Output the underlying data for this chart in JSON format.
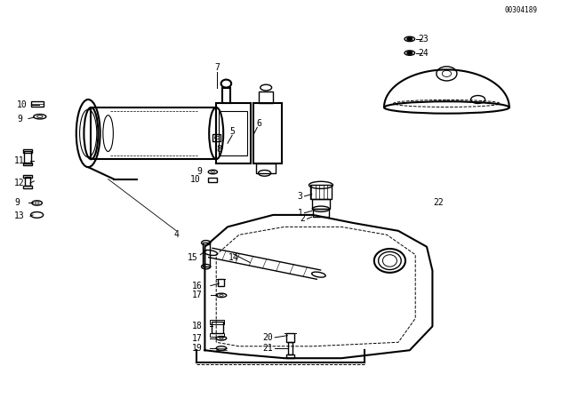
{
  "bg_color": "#ffffff",
  "line_color": "#000000",
  "diagram_code": "00304189",
  "fig_width": 6.4,
  "fig_height": 4.48,
  "dpi": 100
}
